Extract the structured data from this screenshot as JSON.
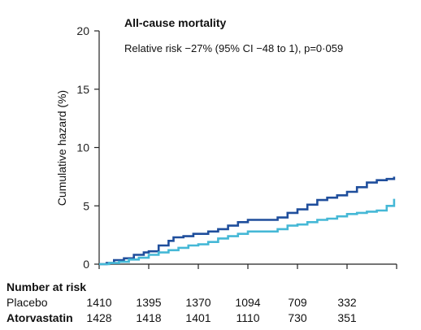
{
  "chart_data": {
    "type": "line",
    "title": "All-cause mortality",
    "subtitle": "Relative risk −27% (95% CI −48 to 1), p=0·059",
    "ylabel": "Cumulative hazard (%)",
    "xlabel": "",
    "ylim": [
      0,
      20
    ],
    "yticks": [
      "0",
      "5",
      "10",
      "15",
      "20"
    ],
    "x_range": [
      0,
      6
    ],
    "grid": false,
    "series": [
      {
        "name": "Placebo",
        "color": "#1f4e9c",
        "x": [
          0,
          0.15,
          0.3,
          0.5,
          0.7,
          0.9,
          1.0,
          1.2,
          1.4,
          1.5,
          1.7,
          1.9,
          2.0,
          2.2,
          2.4,
          2.6,
          2.8,
          3.0,
          3.2,
          3.4,
          3.6,
          3.8,
          4.0,
          4.2,
          4.4,
          4.6,
          4.8,
          5.0,
          5.2,
          5.4,
          5.6,
          5.8,
          5.95
        ],
        "y": [
          0,
          0.1,
          0.35,
          0.5,
          0.8,
          1.0,
          1.1,
          1.6,
          2.0,
          2.3,
          2.4,
          2.6,
          2.6,
          2.8,
          3.0,
          3.3,
          3.6,
          3.8,
          3.8,
          3.8,
          4.0,
          4.4,
          4.7,
          5.1,
          5.5,
          5.7,
          5.9,
          6.2,
          6.6,
          7.0,
          7.2,
          7.3,
          7.5
        ]
      },
      {
        "name": "Atorvastatin",
        "color": "#45b8d6",
        "x": [
          0,
          0.2,
          0.4,
          0.6,
          0.8,
          1.0,
          1.2,
          1.4,
          1.6,
          1.8,
          2.0,
          2.2,
          2.4,
          2.6,
          2.8,
          3.0,
          3.2,
          3.4,
          3.6,
          3.8,
          4.0,
          4.2,
          4.4,
          4.6,
          4.8,
          5.0,
          5.2,
          5.4,
          5.6,
          5.8,
          5.95
        ],
        "y": [
          0,
          0.1,
          0.2,
          0.4,
          0.55,
          0.8,
          1.0,
          1.2,
          1.4,
          1.6,
          1.7,
          1.9,
          2.2,
          2.4,
          2.6,
          2.8,
          2.8,
          2.8,
          3.0,
          3.3,
          3.4,
          3.6,
          3.8,
          3.9,
          4.1,
          4.3,
          4.4,
          4.5,
          4.6,
          5.0,
          5.6
        ]
      }
    ],
    "number_at_risk": {
      "header": "Number at risk",
      "rows": [
        {
          "name": "Placebo",
          "values": [
            "1410",
            "1395",
            "1370",
            "1094",
            "709",
            "332"
          ]
        },
        {
          "name": "Atorvastatin",
          "values": [
            "1428",
            "1418",
            "1401",
            "1110",
            "730",
            "351"
          ]
        }
      ]
    }
  }
}
